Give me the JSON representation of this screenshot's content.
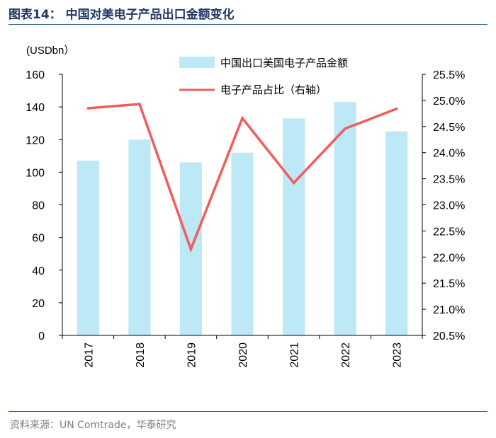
{
  "figure": {
    "title_label": "图表14：",
    "title_text": "中国对美电子产品出口金额变化",
    "source": "资料来源：UN Comtrade，华泰研究"
  },
  "chart_data": {
    "type": "bar",
    "title": "中国对美电子产品出口金额变化",
    "categories": [
      "2017",
      "2018",
      "2019",
      "2020",
      "2021",
      "2022",
      "2023"
    ],
    "series": [
      {
        "name": "中国出口美国电子产品金额",
        "type": "bar",
        "axis": "left",
        "color": "#bde9f7",
        "values": [
          107,
          120,
          106,
          112,
          133,
          143,
          125
        ]
      },
      {
        "name": "电子产品占比（右轴）",
        "type": "line",
        "axis": "right",
        "color": "#f25c5c",
        "values": [
          24.85,
          24.93,
          22.15,
          24.66,
          23.42,
          24.46,
          24.84
        ]
      }
    ],
    "y_left": {
      "label": "(USDbn）",
      "lim": [
        0,
        160
      ],
      "ticks": [
        "0",
        "20",
        "40",
        "60",
        "80",
        "100",
        "120",
        "140",
        "160"
      ]
    },
    "y_right": {
      "lim": [
        20.5,
        25.5
      ],
      "ticks": [
        "20.5%",
        "21.0%",
        "21.5%",
        "22.0%",
        "22.5%",
        "23.0%",
        "23.5%",
        "24.0%",
        "24.5%",
        "25.0%",
        "25.5%"
      ]
    },
    "grid": false,
    "legend_position": "top-right"
  }
}
